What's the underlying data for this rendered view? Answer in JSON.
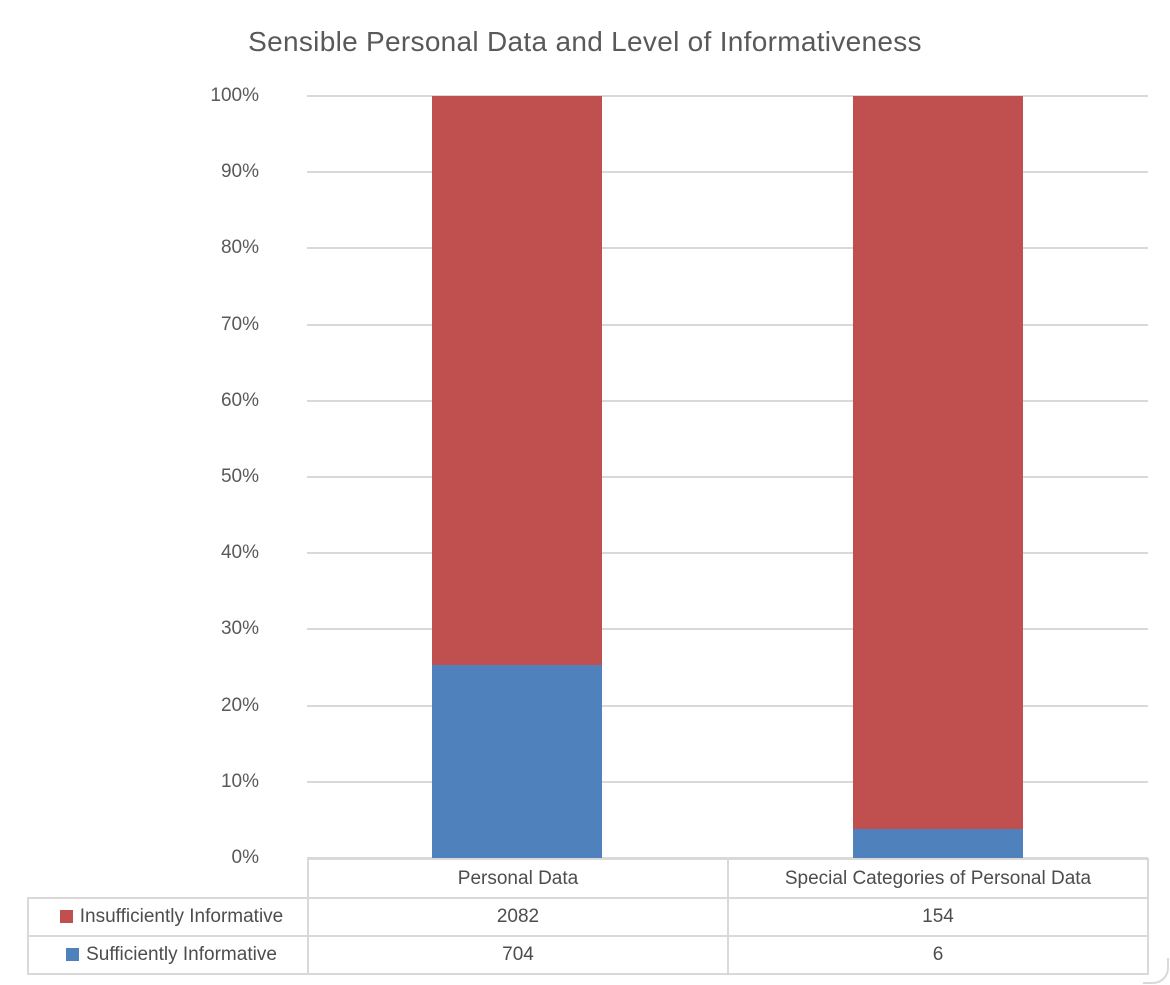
{
  "chart": {
    "title": "Sensible Personal Data and Level of Informativeness"
  },
  "chart_data": {
    "type": "bar",
    "stacked": true,
    "stacked_mode": "percent",
    "title": "Sensible Personal Data and Level of Informativeness",
    "categories": [
      "Personal Data",
      "Special Categories of Personal Data"
    ],
    "series": [
      {
        "name": "Insufficiently Informative",
        "color": "#bf504f",
        "values": [
          2082,
          154
        ]
      },
      {
        "name": "Sufficiently Informative",
        "color": "#4f81bd",
        "values": [
          704,
          6
        ]
      }
    ],
    "xlabel": "",
    "ylabel": "",
    "ylim": [
      0,
      100
    ],
    "yticks": [
      "0%",
      "10%",
      "20%",
      "30%",
      "40%",
      "50%",
      "60%",
      "70%",
      "80%",
      "90%",
      "100%"
    ],
    "grid": true,
    "legend_position": "bottom-table",
    "colors": {
      "grid": "#d9d9d9",
      "table_border": "#d9d9d9",
      "title_text": "#595959",
      "axis_text": "#595959",
      "table_text": "#4d4d4d",
      "background": "#ffffff"
    }
  }
}
